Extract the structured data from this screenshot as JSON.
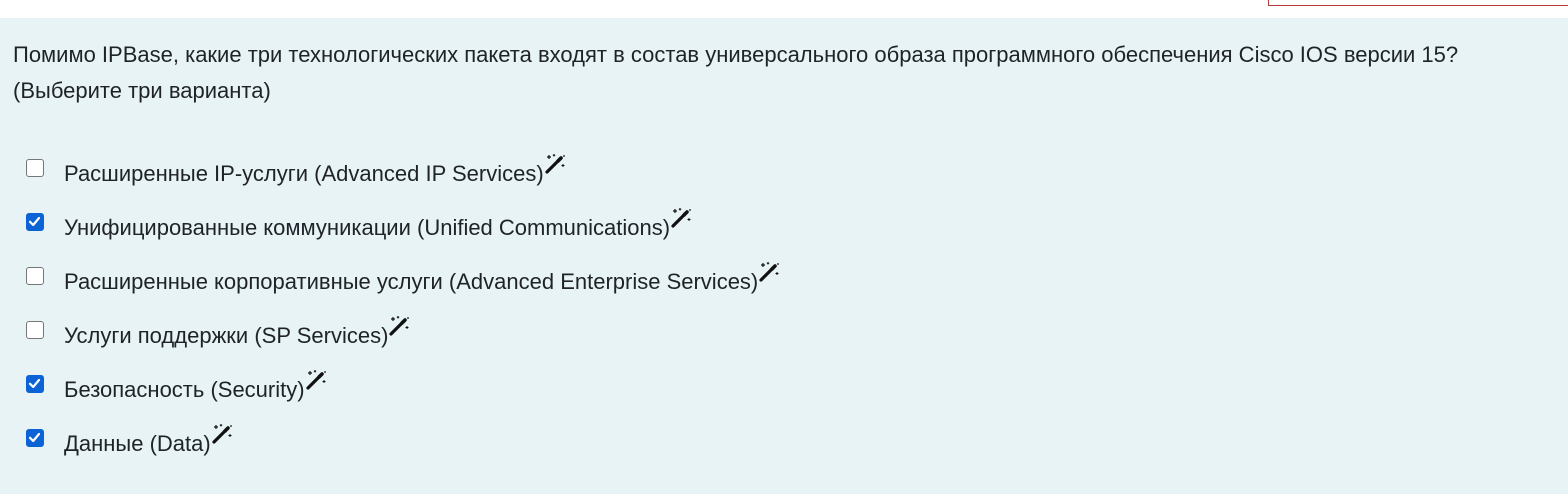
{
  "question": {
    "text": "Помимо IPBase, какие три технологических пакета входят в состав универсального образа программного обеспечения Cisco IOS версии 15? (Выберите три варианта)"
  },
  "options": [
    {
      "label": "Расширенные IP-услуги (Advanced IP Services)",
      "checked": false
    },
    {
      "label": "Унифицированные коммуникации (Unified Communications)",
      "checked": true
    },
    {
      "label": "Расширенные корпоративные услуги (Advanced Enterprise Services)",
      "checked": false
    },
    {
      "label": "Услуги поддержки (SP Services)",
      "checked": false
    },
    {
      "label": "Безопасность (Security)",
      "checked": true
    },
    {
      "label": "Данные (Data)",
      "checked": true
    }
  ],
  "icons": {
    "option_suffix": "magic-wand-icon"
  },
  "colors": {
    "card_background": "#e7f3f4",
    "checkbox_checked": "#0b63d6",
    "text": "#1f2329"
  }
}
